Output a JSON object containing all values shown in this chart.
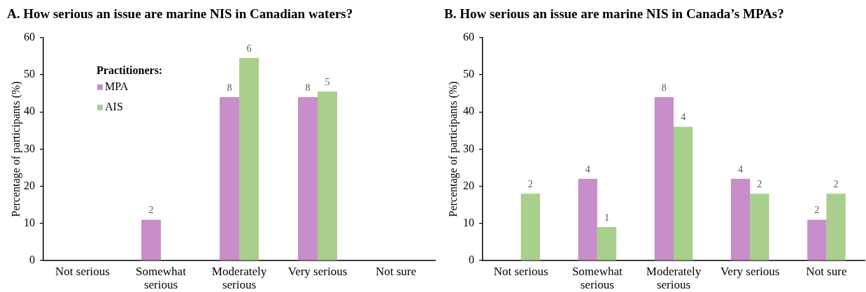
{
  "chart_data": [
    {
      "type": "bar",
      "title": "A. How serious an issue are marine NIS in Canadian waters?",
      "ylabel": "Percentage of participants (%)",
      "legend_title": "Practitioners:",
      "legend": "top left",
      "categories": [
        "Not serious",
        "Somewhat serious",
        "Moderately serious",
        "Very serious",
        "Not sure"
      ],
      "series": [
        {
          "name": "MPA",
          "color": "#c88ec9",
          "values": [
            0,
            11,
            44,
            44,
            0
          ]
        },
        {
          "name": "AIS",
          "color": "#a9cf8d",
          "values": [
            0,
            0,
            54.5,
            45.5,
            0
          ]
        }
      ],
      "annotations": [
        {
          "text": "2",
          "x": "Somewhat serious",
          "y": 11
        },
        {
          "text": "8",
          "x": "Moderately serious",
          "y": 44
        },
        {
          "text": "6",
          "x": "Moderately serious",
          "y": 54.5
        },
        {
          "text": "8",
          "x": "Very serious",
          "y": 44
        },
        {
          "text": "5",
          "x": "Very serious",
          "y": 45.5
        }
      ],
      "ylim": [
        0,
        60
      ],
      "yticks": [
        0,
        10,
        20,
        30,
        40,
        50,
        60
      ]
    },
    {
      "type": "bar",
      "title": "B. How serious an issue are marine NIS in Canada’s MPAs?",
      "ylabel": "Percentage of participants (%)",
      "categories": [
        "Not serious",
        "Somewhat serious",
        "Moderately serious",
        "Very serious",
        "Not sure"
      ],
      "series": [
        {
          "color": "#c88ec9",
          "values": [
            0,
            22,
            44,
            22,
            11
          ]
        },
        {
          "color": "#a9cf8d",
          "values": [
            18,
            9,
            36,
            18,
            18
          ]
        }
      ],
      "annotations": [
        {
          "text": "2",
          "x": "Not serious",
          "y": 18
        },
        {
          "text": "4",
          "x": "Somewhat serious",
          "y": 22
        },
        {
          "text": "1",
          "x": "Somewhat serious",
          "y": 9
        },
        {
          "text": "8",
          "x": "Moderately serious",
          "y": 44
        },
        {
          "text": "4",
          "x": "Moderately serious",
          "y": 36
        },
        {
          "text": "4",
          "x": "Very serious",
          "y": 22
        },
        {
          "text": "2",
          "x": "Very serious",
          "y": 18
        },
        {
          "text": "2",
          "x": "Not sure",
          "y": 11
        },
        {
          "text": "2",
          "x": "Not sure",
          "y": 18
        }
      ],
      "ylim": [
        0,
        60
      ],
      "yticks": [
        0,
        10,
        20,
        30,
        40,
        50,
        60
      ]
    }
  ]
}
